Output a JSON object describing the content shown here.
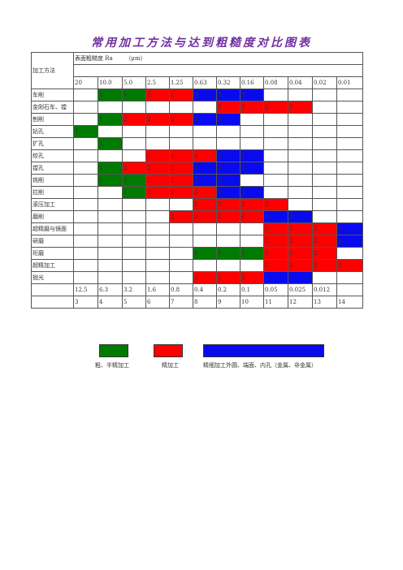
{
  "title": "常用加工方法与达到粗糙度对比图表",
  "header": {
    "method_label": "加工方法",
    "ra_label": "表面粗糙度 Ra",
    "unit_label": "（μm）"
  },
  "columns": [
    "20",
    "10.0",
    "5.0",
    "2.5",
    "1.25",
    "0.63",
    "0.32",
    "0.16",
    "0.08",
    "0.04",
    "0.02",
    "0.01"
  ],
  "rows": [
    {
      "name": "车削",
      "cells": [
        [
          "",
          ""
        ],
        [
          "g",
          "1"
        ],
        [
          "g",
          "1"
        ],
        [
          "r",
          "2"
        ],
        [
          "r",
          "2"
        ],
        [
          "b",
          "3"
        ],
        [
          "b",
          "3"
        ],
        [
          "b",
          "3"
        ],
        [
          "",
          ""
        ],
        [
          "",
          ""
        ],
        [
          "",
          ""
        ],
        [
          "",
          ""
        ]
      ]
    },
    {
      "name": "金刚石车、镗",
      "cells": [
        [
          "",
          ""
        ],
        [
          "",
          ""
        ],
        [
          "",
          ""
        ],
        [
          "",
          ""
        ],
        [
          "",
          ""
        ],
        [
          "",
          ""
        ],
        [
          "r",
          "2"
        ],
        [
          "r",
          "2"
        ],
        [
          "r",
          "2"
        ],
        [
          "r",
          "2"
        ],
        [
          "",
          ""
        ],
        [
          "",
          ""
        ]
      ]
    },
    {
      "name": "刨削",
      "cells": [
        [
          "",
          ""
        ],
        [
          "g",
          "1"
        ],
        [
          "r",
          "2"
        ],
        [
          "r",
          "2"
        ],
        [
          "r",
          "2"
        ],
        [
          "b",
          "3"
        ],
        [
          "b",
          "3"
        ],
        [
          "",
          ""
        ],
        [
          "",
          ""
        ],
        [
          "",
          ""
        ],
        [
          "",
          ""
        ],
        [
          "",
          ""
        ]
      ]
    },
    {
      "name": "钻孔",
      "cells": [
        [
          "g",
          "1"
        ],
        [
          "",
          ""
        ],
        [
          "",
          ""
        ],
        [
          "",
          ""
        ],
        [
          "",
          ""
        ],
        [
          "",
          ""
        ],
        [
          "",
          ""
        ],
        [
          "",
          ""
        ],
        [
          "",
          ""
        ],
        [
          "",
          ""
        ],
        [
          "",
          ""
        ],
        [
          "",
          ""
        ]
      ]
    },
    {
      "name": "扩孔",
      "cells": [
        [
          "",
          ""
        ],
        [
          "g",
          "1"
        ],
        [
          "",
          ""
        ],
        [
          "",
          ""
        ],
        [
          "",
          ""
        ],
        [
          "",
          ""
        ],
        [
          "",
          ""
        ],
        [
          "",
          ""
        ],
        [
          "",
          ""
        ],
        [
          "",
          ""
        ],
        [
          "",
          ""
        ],
        [
          "",
          ""
        ]
      ]
    },
    {
      "name": "绞孔",
      "cells": [
        [
          "",
          ""
        ],
        [
          "",
          ""
        ],
        [
          "",
          ""
        ],
        [
          "r",
          "2"
        ],
        [
          "r",
          "2"
        ],
        [
          "r",
          "2"
        ],
        [
          "b",
          "3"
        ],
        [
          "b",
          "3"
        ],
        [
          "",
          ""
        ],
        [
          "",
          ""
        ],
        [
          "",
          ""
        ],
        [
          "",
          ""
        ]
      ]
    },
    {
      "name": "镗孔",
      "cells": [
        [
          "",
          ""
        ],
        [
          "g",
          "1"
        ],
        [
          "r",
          "2"
        ],
        [
          "r",
          "2"
        ],
        [
          "r",
          "2"
        ],
        [
          "b",
          "3"
        ],
        [
          "b",
          "3"
        ],
        [
          "b",
          "3"
        ],
        [
          "",
          ""
        ],
        [
          "",
          ""
        ],
        [
          "",
          ""
        ],
        [
          "",
          ""
        ]
      ]
    },
    {
      "name": "铣削",
      "cells": [
        [
          "",
          ""
        ],
        [
          "g",
          "1"
        ],
        [
          "g",
          "1"
        ],
        [
          "r",
          "2"
        ],
        [
          "r",
          "2"
        ],
        [
          "b",
          "3"
        ],
        [
          "b",
          "3"
        ],
        [
          "",
          ""
        ],
        [
          "",
          ""
        ],
        [
          "",
          ""
        ],
        [
          "",
          ""
        ],
        [
          "",
          ""
        ]
      ]
    },
    {
      "name": "拉削",
      "cells": [
        [
          "",
          ""
        ],
        [
          "",
          ""
        ],
        [
          "g",
          "1"
        ],
        [
          "r",
          "2"
        ],
        [
          "r",
          "2"
        ],
        [
          "r",
          "2"
        ],
        [
          "b",
          "3"
        ],
        [
          "b",
          "3"
        ],
        [
          "",
          ""
        ],
        [
          "",
          ""
        ],
        [
          "",
          ""
        ],
        [
          "",
          ""
        ]
      ]
    },
    {
      "name": "滚压加工",
      "cells": [
        [
          "",
          ""
        ],
        [
          "",
          ""
        ],
        [
          "",
          ""
        ],
        [
          "",
          ""
        ],
        [
          "",
          ""
        ],
        [
          "r",
          "2"
        ],
        [
          "r",
          "2"
        ],
        [
          "r",
          "2"
        ],
        [
          "r",
          "2"
        ],
        [
          "",
          ""
        ],
        [
          "",
          ""
        ],
        [
          "",
          ""
        ]
      ]
    },
    {
      "name": "磨削",
      "cells": [
        [
          "",
          ""
        ],
        [
          "",
          ""
        ],
        [
          "",
          ""
        ],
        [
          "",
          ""
        ],
        [
          "r",
          "2"
        ],
        [
          "r",
          "2"
        ],
        [
          "r",
          "2"
        ],
        [
          "r",
          "2"
        ],
        [
          "b",
          "3"
        ],
        [
          "b",
          "3"
        ],
        [
          "",
          ""
        ],
        [
          "",
          ""
        ]
      ]
    },
    {
      "name": "超精磨与镜面",
      "cells": [
        [
          "",
          ""
        ],
        [
          "",
          ""
        ],
        [
          "",
          ""
        ],
        [
          "",
          ""
        ],
        [
          "",
          ""
        ],
        [
          "",
          ""
        ],
        [
          "",
          ""
        ],
        [
          "",
          ""
        ],
        [
          "r",
          "2"
        ],
        [
          "r",
          "2"
        ],
        [
          "r",
          "2"
        ],
        [
          "b",
          "3"
        ]
      ]
    },
    {
      "name": "研磨",
      "cells": [
        [
          "",
          ""
        ],
        [
          "",
          ""
        ],
        [
          "",
          ""
        ],
        [
          "",
          ""
        ],
        [
          "",
          ""
        ],
        [
          "",
          ""
        ],
        [
          "",
          ""
        ],
        [
          "",
          ""
        ],
        [
          "r",
          "2"
        ],
        [
          "r",
          "2"
        ],
        [
          "r",
          "2"
        ],
        [
          "b",
          "3"
        ]
      ]
    },
    {
      "name": "珩磨",
      "cells": [
        [
          "",
          ""
        ],
        [
          "",
          ""
        ],
        [
          "",
          ""
        ],
        [
          "",
          ""
        ],
        [
          "",
          ""
        ],
        [
          "g",
          "1"
        ],
        [
          "g",
          "1"
        ],
        [
          "g",
          "1"
        ],
        [
          "r",
          "2"
        ],
        [
          "r",
          "2"
        ],
        [
          "r",
          "2"
        ],
        [
          "",
          ""
        ]
      ]
    },
    {
      "name": "超精加工",
      "cells": [
        [
          "",
          ""
        ],
        [
          "",
          ""
        ],
        [
          "",
          ""
        ],
        [
          "",
          ""
        ],
        [
          "",
          ""
        ],
        [
          "",
          ""
        ],
        [
          "",
          ""
        ],
        [
          "",
          ""
        ],
        [
          "r",
          "2"
        ],
        [
          "r",
          "2"
        ],
        [
          "r",
          "2"
        ],
        [
          "r",
          "2"
        ]
      ]
    },
    {
      "name": "抛光",
      "cells": [
        [
          "",
          ""
        ],
        [
          "",
          ""
        ],
        [
          "",
          ""
        ],
        [
          "",
          ""
        ],
        [
          "",
          ""
        ],
        [
          "r",
          "2"
        ],
        [
          "r",
          "2"
        ],
        [
          "r",
          "2"
        ],
        [
          "b",
          ""
        ],
        [
          "b",
          ""
        ],
        [
          "",
          ""
        ],
        [
          "",
          ""
        ]
      ]
    }
  ],
  "footer_ra": [
    "12.5",
    "6.3",
    "3.2",
    "1.6",
    "0.8",
    "0.4",
    "0.2",
    "0.1",
    "0.05",
    "0.025",
    "0.012",
    ""
  ],
  "footer_grade": [
    "3",
    "4",
    "5",
    "6",
    "7",
    "8",
    "9",
    "10",
    "11",
    "12",
    "13",
    "14"
  ],
  "legend": [
    {
      "color": "#007a00",
      "label": "粗、半精加工"
    },
    {
      "color": "#ff0000",
      "label": "精加工"
    },
    {
      "color": "#0a0aee",
      "label": "精细加工外圆、端面、内孔（金属、非金属）"
    }
  ]
}
